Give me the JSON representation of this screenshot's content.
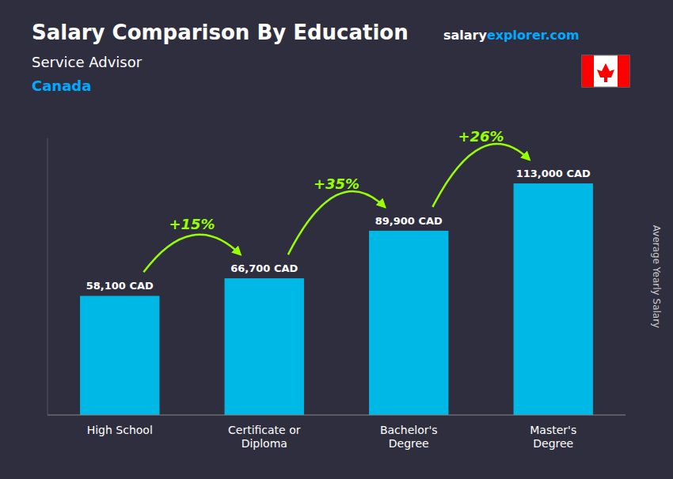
{
  "chart_data": {
    "type": "bar",
    "title": "Salary Comparison By Education",
    "subtitle": [
      "Service Advisor",
      "Canada"
    ],
    "brand": [
      "salary",
      "explorer.com"
    ],
    "y_label": "Average Yearly Salary",
    "categories": [
      "High School",
      "Certificate or\nDiploma",
      "Bachelor's\nDegree",
      "Master's\nDegree"
    ],
    "values": [
      58100,
      66700,
      89900,
      113000
    ],
    "value_labels": [
      "58,100 CAD",
      "66,700 CAD",
      "89,900 CAD",
      "113,000 CAD"
    ],
    "annotations": [
      "+15%",
      "+35%",
      "+26%"
    ],
    "color": "#00b8e6",
    "ylim": [
      0,
      135000
    ],
    "data_labels": true,
    "tick_labels": "x",
    "grid": false
  }
}
